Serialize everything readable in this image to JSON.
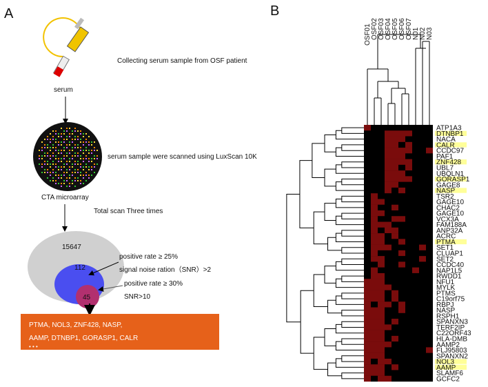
{
  "panel_a": {
    "label": "A",
    "step1": "Collecting serum sample from OSF patient",
    "sample": "serum",
    "step2": "serum sample were scanned using LuxScan 10K",
    "array": "CTA microarray",
    "step3": "Total scan Three times",
    "venn": {
      "outer": "15647",
      "middle": "112",
      "inner": "45"
    },
    "criteria1": [
      "positive rate ≥ 25%",
      "signal noise ration（SNR）>2"
    ],
    "criteria2": [
      "positive rate ≥ 30%",
      "SNR>10"
    ],
    "result": [
      "PTMA, NOL3, ZNF428, NASP,",
      "AAMP, DTNBP1, GORASP1, CALR",
      "• • •"
    ]
  },
  "panel_b": {
    "label": "B",
    "columns": [
      "OSF01",
      "OSF02",
      "OSF03",
      "OSF04",
      "OSF05",
      "OSF06",
      "OSF07",
      "N01",
      "N02",
      "N03"
    ],
    "rows": [
      "ATP1A3",
      "DTNBP1",
      "NACA",
      "CALR",
      "CCDC97",
      "PAF1",
      "ZNF428",
      "UBL7",
      "UBQLN1",
      "GORASP1",
      "GAGE8",
      "NASP",
      "TSR2",
      "GAGE10",
      "CHAC2",
      "GAGE10",
      "VCX3A",
      "FAM188A",
      "ANP32A",
      "ACRC",
      "PTMA",
      "SET1",
      "CLUAP1",
      "SET2",
      "CCDC40",
      "NAP1L5",
      "RWDD1",
      "NFU1",
      "MYLK",
      "PTMS",
      "C19orf75",
      "RBPJ",
      "NASP",
      "RSPH1",
      "SPANXN3",
      "TERF2IP",
      "C22ORF43",
      "HLA-DMB",
      "AAMP2",
      "FLJ95803",
      "SPANXN2",
      "NOL3",
      "AAMP",
      "SLAMF6",
      "GCFC2"
    ],
    "highlighted": [
      1,
      3,
      6,
      9,
      11,
      20,
      41,
      42
    ],
    "matrix": [
      [
        1,
        0,
        0,
        0,
        0,
        0,
        0,
        0,
        0,
        0
      ],
      [
        0,
        0,
        0,
        1,
        1,
        1,
        1,
        0,
        0,
        0
      ],
      [
        0,
        0,
        0,
        1,
        1,
        1,
        0,
        0,
        0,
        0
      ],
      [
        0,
        0,
        0,
        1,
        1,
        0,
        1,
        0,
        0,
        0
      ],
      [
        0,
        0,
        0,
        1,
        1,
        1,
        1,
        0,
        0,
        1
      ],
      [
        0,
        0,
        0,
        1,
        1,
        1,
        0,
        0,
        0,
        0
      ],
      [
        0,
        0,
        0,
        1,
        1,
        1,
        1,
        0,
        0,
        0
      ],
      [
        0,
        0,
        0,
        1,
        1,
        0,
        1,
        0,
        0,
        0
      ],
      [
        0,
        0,
        0,
        1,
        1,
        1,
        0,
        0,
        0,
        0
      ],
      [
        0,
        0,
        0,
        1,
        1,
        1,
        1,
        0,
        0,
        0
      ],
      [
        0,
        0,
        0,
        1,
        1,
        0,
        0,
        0,
        0,
        0
      ],
      [
        0,
        0,
        0,
        1,
        0,
        1,
        0,
        0,
        0,
        0
      ],
      [
        0,
        1,
        0,
        0,
        0,
        0,
        0,
        0,
        0,
        0
      ],
      [
        0,
        1,
        1,
        0,
        0,
        0,
        0,
        0,
        0,
        0
      ],
      [
        0,
        1,
        0,
        0,
        1,
        0,
        0,
        0,
        0,
        0
      ],
      [
        0,
        1,
        1,
        0,
        0,
        0,
        0,
        0,
        0,
        0
      ],
      [
        0,
        1,
        0,
        0,
        1,
        1,
        0,
        0,
        0,
        0
      ],
      [
        0,
        1,
        1,
        1,
        0,
        0,
        0,
        0,
        0,
        0
      ],
      [
        0,
        1,
        0,
        1,
        1,
        0,
        0,
        0,
        0,
        0
      ],
      [
        0,
        1,
        1,
        0,
        1,
        0,
        0,
        0,
        0,
        0
      ],
      [
        0,
        1,
        1,
        0,
        0,
        1,
        0,
        0,
        0,
        0
      ],
      [
        0,
        1,
        1,
        1,
        0,
        0,
        0,
        0,
        1,
        0
      ],
      [
        0,
        1,
        0,
        0,
        0,
        1,
        0,
        0,
        0,
        0
      ],
      [
        0,
        1,
        1,
        0,
        0,
        0,
        0,
        0,
        1,
        0
      ],
      [
        0,
        0,
        1,
        0,
        0,
        1,
        0,
        0,
        0,
        0
      ],
      [
        0,
        1,
        0,
        0,
        0,
        0,
        0,
        1,
        0,
        0
      ],
      [
        0,
        1,
        1,
        0,
        0,
        0,
        0,
        0,
        0,
        0
      ],
      [
        1,
        1,
        1,
        0,
        0,
        0,
        0,
        0,
        0,
        0
      ],
      [
        1,
        1,
        1,
        1,
        0,
        0,
        0,
        0,
        0,
        0
      ],
      [
        1,
        1,
        1,
        0,
        1,
        0,
        0,
        0,
        0,
        0
      ],
      [
        1,
        1,
        1,
        0,
        1,
        0,
        0,
        0,
        0,
        0
      ],
      [
        1,
        0,
        1,
        1,
        0,
        1,
        0,
        0,
        0,
        0
      ],
      [
        1,
        1,
        1,
        0,
        0,
        1,
        0,
        0,
        0,
        0
      ],
      [
        1,
        1,
        1,
        0,
        0,
        0,
        0,
        0,
        0,
        0
      ],
      [
        1,
        1,
        1,
        0,
        1,
        0,
        0,
        0,
        0,
        0
      ],
      [
        1,
        1,
        1,
        1,
        0,
        0,
        0,
        0,
        0,
        0
      ],
      [
        1,
        1,
        1,
        0,
        0,
        0,
        0,
        0,
        0,
        0
      ],
      [
        1,
        1,
        1,
        0,
        1,
        0,
        0,
        0,
        0,
        0
      ],
      [
        1,
        1,
        1,
        1,
        0,
        0,
        0,
        0,
        0,
        0
      ],
      [
        1,
        1,
        1,
        0,
        0,
        0,
        0,
        0,
        0,
        1
      ],
      [
        1,
        1,
        1,
        0,
        0,
        0,
        0,
        0,
        0,
        0
      ],
      [
        1,
        0,
        1,
        1,
        0,
        0,
        0,
        0,
        0,
        0
      ],
      [
        1,
        1,
        1,
        0,
        1,
        0,
        0,
        0,
        0,
        0
      ],
      [
        1,
        1,
        1,
        0,
        0,
        0,
        0,
        0,
        0,
        0
      ],
      [
        1,
        0,
        1,
        1,
        0,
        0,
        0,
        0,
        0,
        0
      ]
    ]
  }
}
